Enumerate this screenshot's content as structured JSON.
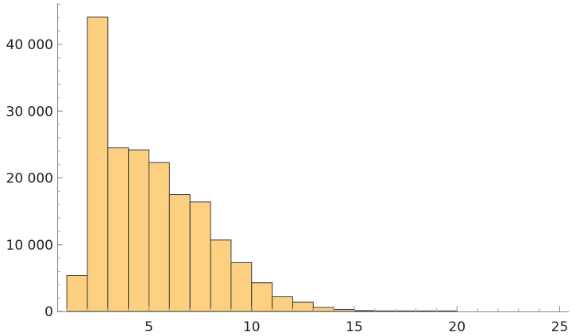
{
  "chart_data": {
    "type": "bar",
    "title": "",
    "xlabel": "",
    "ylabel": "",
    "xlim": [
      1,
      25.5
    ],
    "ylim": [
      0,
      47000
    ],
    "grid": false,
    "bar_color": "#fdd081",
    "bar_edge_color": "#3a3a3a",
    "bin_width": 1,
    "bins": [
      {
        "start": 1,
        "end": 2,
        "value": 5400
      },
      {
        "start": 2,
        "end": 3,
        "value": 44100
      },
      {
        "start": 3,
        "end": 4,
        "value": 24500
      },
      {
        "start": 4,
        "end": 5,
        "value": 24200
      },
      {
        "start": 5,
        "end": 6,
        "value": 22300
      },
      {
        "start": 6,
        "end": 7,
        "value": 17500
      },
      {
        "start": 7,
        "end": 8,
        "value": 16400
      },
      {
        "start": 8,
        "end": 9,
        "value": 10700
      },
      {
        "start": 9,
        "end": 10,
        "value": 7300
      },
      {
        "start": 10,
        "end": 11,
        "value": 4300
      },
      {
        "start": 11,
        "end": 12,
        "value": 2200
      },
      {
        "start": 12,
        "end": 13,
        "value": 1400
      },
      {
        "start": 13,
        "end": 14,
        "value": 600
      },
      {
        "start": 14,
        "end": 15,
        "value": 300
      },
      {
        "start": 15,
        "end": 16,
        "value": 120
      },
      {
        "start": 16,
        "end": 17,
        "value": 60
      },
      {
        "start": 17,
        "end": 18,
        "value": 40
      },
      {
        "start": 18,
        "end": 19,
        "value": 25
      },
      {
        "start": 19,
        "end": 20,
        "value": 15
      }
    ],
    "x_ticks": [
      {
        "value": 5,
        "label": "5"
      },
      {
        "value": 10,
        "label": "10"
      },
      {
        "value": 15,
        "label": "15"
      },
      {
        "value": 20,
        "label": "20"
      },
      {
        "value": 25,
        "label": "25"
      }
    ],
    "y_ticks": [
      {
        "value": 0,
        "label": "0"
      },
      {
        "value": 10000,
        "label": "10 000"
      },
      {
        "value": 20000,
        "label": "20 000"
      },
      {
        "value": 30000,
        "label": "30 000"
      },
      {
        "value": 40000,
        "label": "40 000"
      }
    ]
  }
}
